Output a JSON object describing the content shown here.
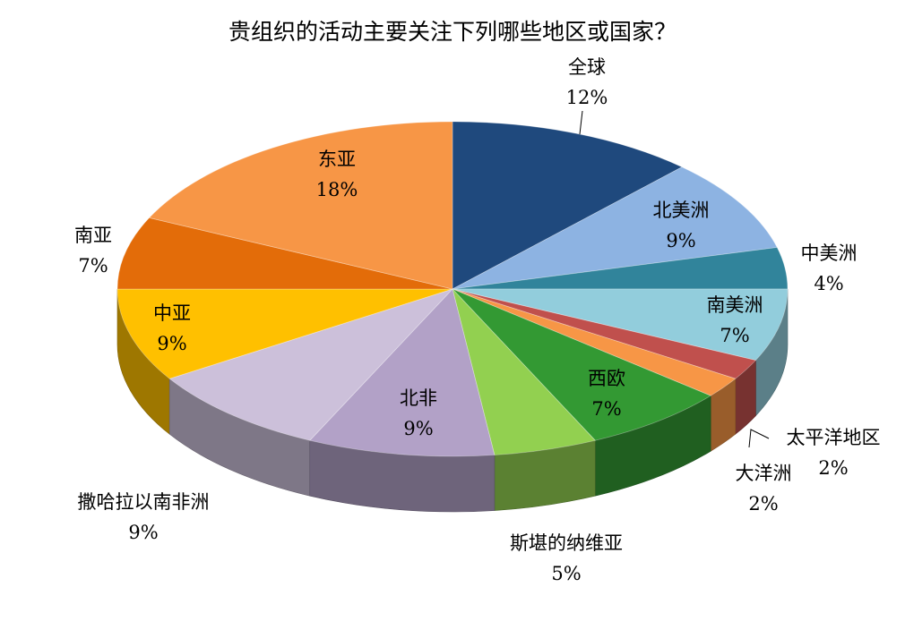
{
  "chart_data": {
    "type": "pie",
    "title": "贵组织的活动主要关注下列哪些地区或国家？",
    "slices": [
      {
        "name": "全球",
        "value": 12,
        "label": "12%",
        "color": "#1F497D"
      },
      {
        "name": "北美洲",
        "value": 9,
        "label": "9%",
        "color": "#8DB3E2"
      },
      {
        "name": "中美洲",
        "value": 4,
        "label": "4%",
        "color": "#31849B"
      },
      {
        "name": "南美洲",
        "value": 7,
        "label": "7%",
        "color": "#92CDDC"
      },
      {
        "name": "太平洋地区",
        "value": 2,
        "label": "2%",
        "color": "#C0504D"
      },
      {
        "name": "大洋洲",
        "value": 2,
        "label": "2%",
        "color": "#F79646"
      },
      {
        "name": "西欧",
        "value": 7,
        "label": "7%",
        "color": "#339933"
      },
      {
        "name": "斯堪的纳维亚",
        "value": 5,
        "label": "5%",
        "color": "#92D050"
      },
      {
        "name": "北非",
        "value": 9,
        "label": "9%",
        "color": "#B2A1C7"
      },
      {
        "name": "撒哈拉以南非洲",
        "value": 9,
        "label": "9%",
        "color": "#CCC0DA"
      },
      {
        "name": "中亚",
        "value": 9,
        "label": "9%",
        "color": "#FFC000"
      },
      {
        "name": "南亚",
        "value": 7,
        "label": "7%",
        "color": "#E36C09"
      },
      {
        "name": "东亚",
        "value": 18,
        "label": "18%",
        "color": "#F79646"
      }
    ]
  }
}
